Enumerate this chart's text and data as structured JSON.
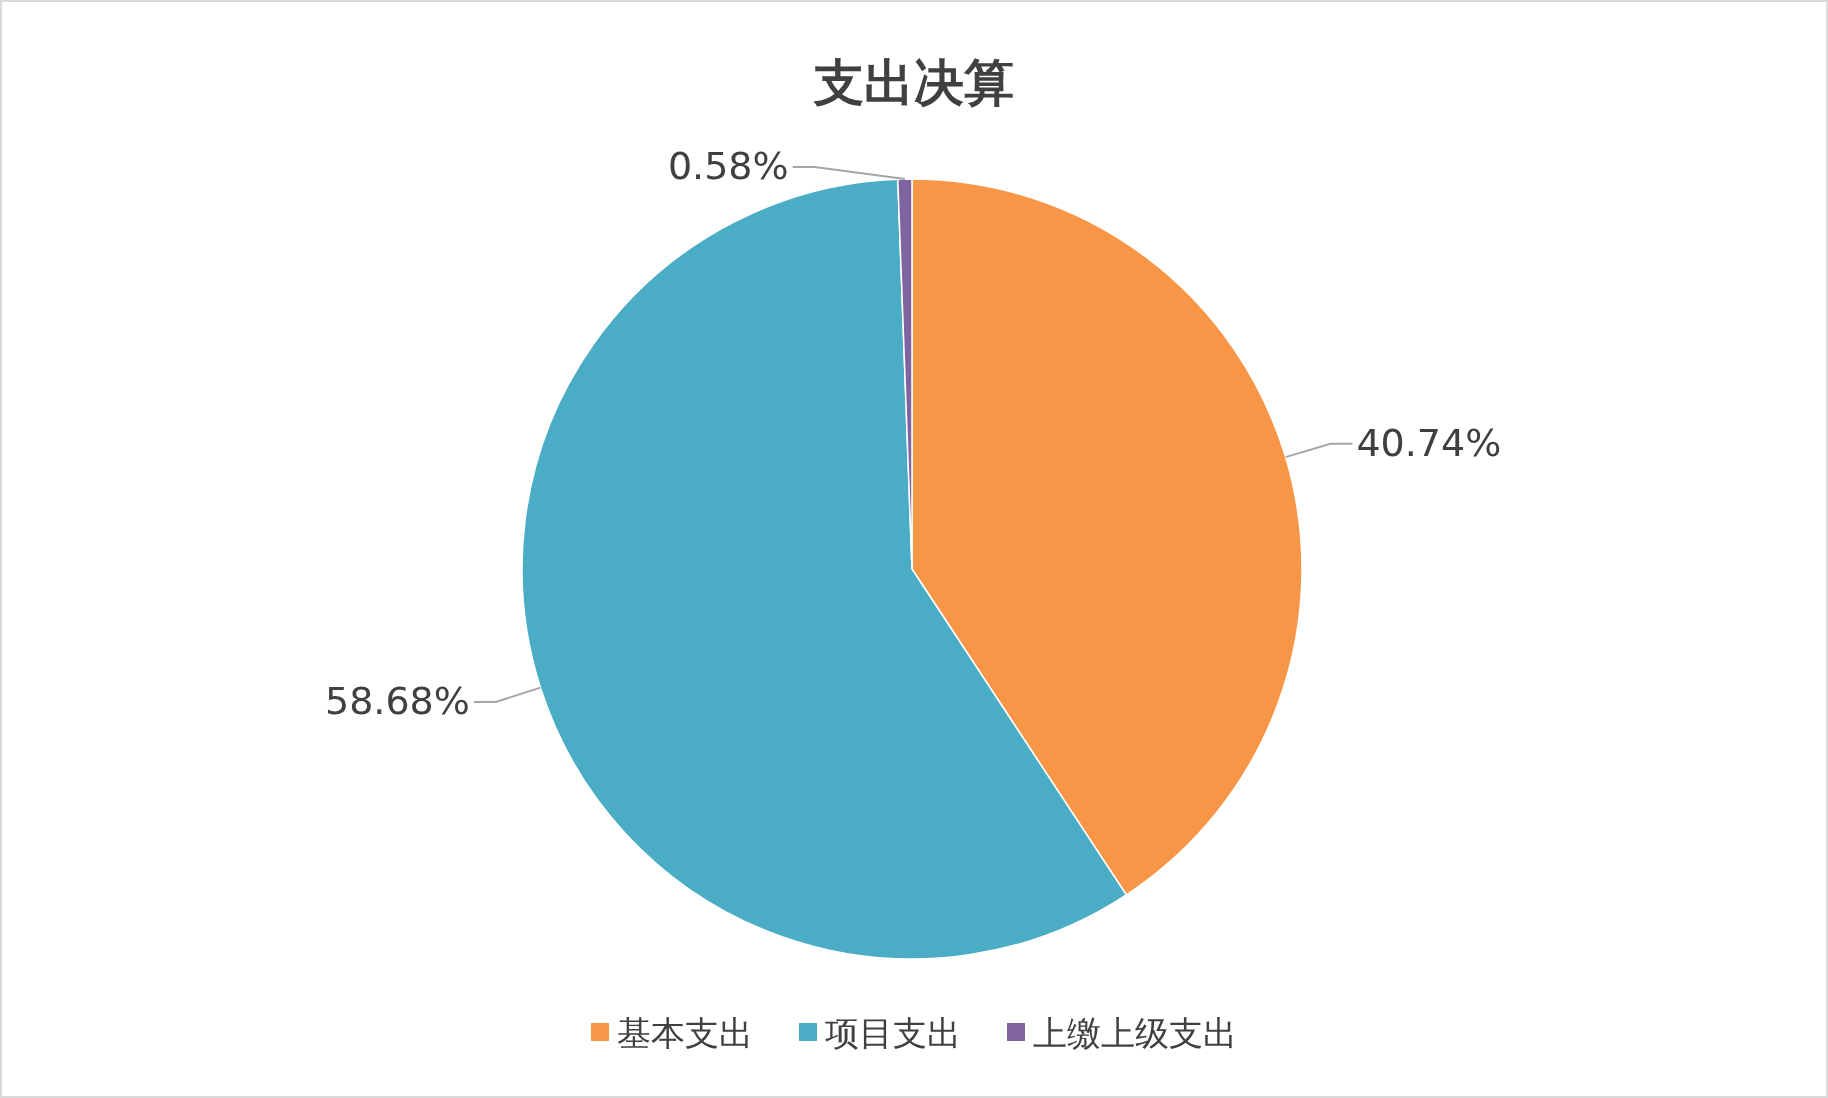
{
  "chart_data": {
    "type": "pie",
    "title": "支出决算",
    "categories": [
      "基本支出",
      "项目支出",
      "上缴上级支出"
    ],
    "values": [
      40.74,
      58.68,
      0.58
    ],
    "colors": [
      "#f79646",
      "#4bacc6",
      "#8064a2"
    ],
    "value_labels": [
      "40.74%",
      "58.68%",
      "0.58%"
    ],
    "legend": "bottom"
  }
}
